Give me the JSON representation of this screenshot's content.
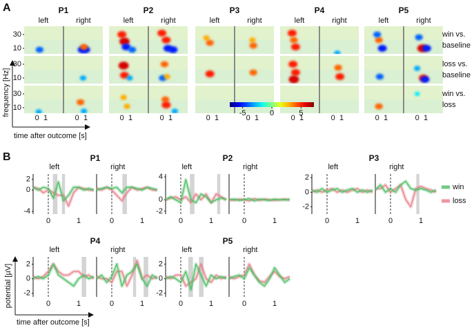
{
  "chart_data": [
    {
      "type": "heatmap",
      "panel_label": "A",
      "xlabel": "time after outcome [s]",
      "ylabel": "frequency [Hz]",
      "xlim": [
        -1.5,
        3
      ],
      "ylim": [
        2,
        42
      ],
      "xticks": [
        0,
        1
      ],
      "yticks": [
        10,
        30
      ],
      "hemispheres": [
        "left",
        "right"
      ],
      "conditions": [
        [
          "win vs.",
          "baseline"
        ],
        [
          "loss vs.",
          "baseline"
        ],
        [
          "win vs.",
          "loss"
        ]
      ],
      "colorbar": {
        "lim": [
          -7.2,
          7.2
        ],
        "ticks": [
          -5,
          0,
          5
        ]
      },
      "participants": [
        {
          "name": "P1",
          "blobs": [
            [
              [
                [
                  0.3,
                  8,
                  -4
                ]
              ],
              [
                [
                  0.6,
                  8,
                  -5
                ],
                [
                  1.0,
                  8,
                  -5
                ],
                [
                  0.8,
                  12,
                  4
                ]
              ]
            ],
            [
              [],
              [
                [
                  0.7,
                  10,
                  -3
                ]
              ]
            ],
            [
              [
                [
                  0.2,
                  4,
                  -3
                ]
              ],
              [
                [
                  0.4,
                  18,
                  4
                ],
                [
                  0.8,
                  5,
                  -3
                ]
              ]
            ]
          ]
        },
        {
          "name": "P2",
          "blobs": [
            [
              [
                [
                  0.0,
                  30,
                  5
                ],
                [
                  0.3,
                  20,
                  6
                ],
                [
                  0.5,
                  12,
                  -5
                ],
                [
                  1.2,
                  8,
                  -4
                ]
              ],
              [
                [
                  0.0,
                  32,
                  5
                ],
                [
                  0.5,
                  22,
                  5
                ],
                [
                  0.7,
                  10,
                  -5
                ],
                [
                  1.3,
                  8,
                  -5
                ]
              ]
            ],
            [
              [
                [
                  0.2,
                  28,
                  6
                ],
                [
                  0.3,
                  14,
                  5
                ],
                [
                  0.9,
                  10,
                  -3
                ]
              ],
              [
                [
                  0.3,
                  30,
                  4
                ],
                [
                  0.1,
                  10,
                  -4
                ],
                [
                  0.6,
                  12,
                  3
                ]
              ]
            ],
            [
              [
                [
                  0.2,
                  25,
                  3
                ],
                [
                  0.6,
                  12,
                  3
                ]
              ],
              [
                [
                  0.4,
                  22,
                  4
                ],
                [
                  0.5,
                  14,
                  5
                ],
                [
                  1.5,
                  5,
                  -3
                ]
              ]
            ]
          ]
        },
        {
          "name": "P3",
          "blobs": [
            [
              [
                [
                  -0.2,
                  25,
                  3
                ],
                [
                  0.2,
                  18,
                  4
                ]
              ],
              [
                [
                  0.5,
                  22,
                  3
                ],
                [
                  0.6,
                  14,
                  4
                ]
              ]
            ],
            [
              [
                [
                  0.2,
                  16,
                  5
                ]
              ],
              [
                [
                  0.6,
                  18,
                  4
                ]
              ]
            ],
            [
              [],
              []
            ]
          ]
        },
        {
          "name": "P4",
          "blobs": [
            [
              [
                [
                  -0.1,
                  32,
                  5
                ],
                [
                  0.1,
                  22,
                  4
                ],
                [
                  0.3,
                  12,
                  5
                ]
              ],
              [
                [
                  0.5,
                  3,
                  -3
                ]
              ]
            ],
            [
              [
                [
                  0.0,
                  30,
                  5
                ],
                [
                  0.3,
                  18,
                  5
                ],
                [
                  0.1,
                  8,
                  6
                ]
              ],
              [
                [
                  0.6,
                  25,
                  4
                ],
                [
                  0.8,
                  12,
                  5
                ]
              ]
            ],
            [
              [],
              []
            ]
          ]
        },
        {
          "name": "P5",
          "blobs": [
            [
              [
                [
                  0.2,
                  22,
                  4
                ],
                [
                  0.0,
                  30,
                  -4
                ],
                [
                  0.6,
                  10,
                  -5
                ]
              ],
              [
                [
                  0.2,
                  26,
                  -4
                ],
                [
                  0.6,
                  10,
                  6
                ],
                [
                  1.1,
                  10,
                  -5
                ]
              ]
            ],
            [
              [
                [
                  0.3,
                  12,
                  -4
                ]
              ],
              [
                [
                  0.0,
                  24,
                  -3
                ],
                [
                  0.7,
                  10,
                  5
                ],
                [
                  0.9,
                  8,
                  -5
                ]
              ]
            ],
            [
              [
                [
                  0.2,
                  12,
                  4
                ]
              ],
              [
                [
                  0.0,
                  30,
                  -2
                ]
              ]
            ]
          ]
        }
      ]
    },
    {
      "type": "line",
      "panel_label": "B",
      "xlabel": "time after outcome [s]",
      "ylabel": "potential [µV]",
      "xlim": [
        -0.5,
        1.5
      ],
      "xticks": [
        0,
        1
      ],
      "hemispheres": [
        "left",
        "right"
      ],
      "series": [
        {
          "name": "win",
          "color": "#4fbf66"
        },
        {
          "name": "loss",
          "color": "#e8808a"
        }
      ],
      "x": [
        -0.5,
        -0.333,
        -0.167,
        0,
        0.167,
        0.333,
        0.5,
        0.667,
        0.833,
        1,
        1.167,
        1.333,
        1.5
      ],
      "participants": [
        {
          "name": "P1",
          "ylim": [
            -4.5,
            3
          ],
          "yticks": [
            -4,
            0,
            2
          ],
          "panels": [
            {
              "values": [
                [
                  0.5,
                  0,
                  0.5,
                  0.3,
                  -1.5,
                  1.5,
                  -2,
                  -1,
                  0.5,
                  0.5,
                  0,
                  0.3,
                  0
                ],
                [
                  0.5,
                  0.3,
                  -0.5,
                  0,
                  -0.5,
                  -1,
                  -1,
                  -3,
                  -0.5,
                  0.5,
                  0.3,
                  0,
                  0
                ]
              ],
              "sig": [
                [
                  0.15,
                  0.3
                ],
                [
                  0.45,
                  0.55
                ]
              ]
            },
            {
              "values": [
                [
                  0,
                  0.3,
                  0.5,
                  0.3,
                  0.5,
                  -0.5,
                  0.5,
                  0.5,
                  0.3,
                  0,
                  0.5,
                  0.3,
                  0
                ],
                [
                  0.3,
                  0,
                  0.5,
                  0,
                  -1,
                  -2,
                  -0.5,
                  0.5,
                  0,
                  0.3,
                  0.5,
                  0,
                  0
                ]
              ],
              "sig": [
                [
                  0.35,
                  0.5
                ]
              ]
            }
          ]
        },
        {
          "name": "P2",
          "ylim": [
            -2.5,
            4.5
          ],
          "yticks": [
            -2,
            0,
            4
          ],
          "panels": [
            {
              "values": [
                [
                  0,
                  0.5,
                  0,
                  -0.5,
                  3.5,
                  0,
                  -0.5,
                  1,
                  0.5,
                  -0.5,
                  0,
                  0.3,
                  0
                ],
                [
                  0,
                  0.3,
                  0.5,
                  0,
                  0.5,
                  -0.5,
                  1,
                  0,
                  1,
                  -0.5,
                  1,
                  0.5,
                  0
                ]
              ],
              "sig": [
                [
                  0.3,
                  0.45
                ],
                [
                  1.2,
                  1.3
                ]
              ]
            },
            {
              "values": [
                [
                  0,
                  0.1,
                  -0.1,
                  0,
                  0.2,
                  -0.2,
                  0.1,
                  0,
                  -0.1,
                  0.1,
                  0,
                  0,
                  0
                ],
                [
                  0,
                  -0.1,
                  0.1,
                  0,
                  -0.2,
                  0.2,
                  -0.1,
                  0.1,
                  0,
                  -0.1,
                  0,
                  0.1,
                  0
                ]
              ],
              "sig": []
            }
          ]
        },
        {
          "name": "P3",
          "ylim": [
            -3,
            2.5
          ],
          "yticks": [
            -2,
            0,
            2
          ],
          "panels": [
            {
              "values": [
                [
                  0.3,
                  0,
                  0.5,
                  0,
                  0.3,
                  0.5,
                  0,
                  0.3,
                  0.5,
                  0,
                  0.3,
                  0,
                  0.3
                ],
                [
                  0,
                  0.3,
                  0,
                  0.3,
                  0.5,
                  0,
                  0.3,
                  0,
                  0.3,
                  0.5,
                  0,
                  0.3,
                  0
                ]
              ],
              "sig": []
            },
            {
              "values": [
                [
                  0.3,
                  1,
                  0,
                  0.5,
                  0,
                  1,
                  1.5,
                  0.5,
                  0.3,
                  0.5,
                  0.3,
                  0,
                  0.3
                ],
                [
                  0.5,
                  0.5,
                  1,
                  0,
                  0.5,
                  1,
                  -1,
                  -2,
                  0.5,
                  0.8,
                  0.5,
                  0.3,
                  0
                ]
              ],
              "sig": [
                [
                  0.85,
                  0.95
                ]
              ]
            }
          ]
        },
        {
          "name": "P4",
          "ylim": [
            -2.5,
            3
          ],
          "yticks": [
            -2,
            0,
            2
          ],
          "panels": [
            {
              "values": [
                [
                  0,
                  0.3,
                  0,
                  0.5,
                  2,
                  0.5,
                  0,
                  -0.5,
                  -1,
                  0,
                  0.5,
                  0,
                  0.3
                ],
                [
                  0.3,
                  0,
                  0.3,
                  1,
                  2,
                  1,
                  0.5,
                  0.5,
                  1,
                  1,
                  0.3,
                  0.5,
                  0
                ]
              ],
              "sig": [
                [
                  1.1,
                  1.25
                ]
              ]
            },
            {
              "values": [
                [
                  0,
                  0.5,
                  -0.5,
                  0.3,
                  2,
                  -1,
                  0.5,
                  1,
                  2,
                  0,
                  -1,
                  0.5,
                  0
                ],
                [
                  0.3,
                  0,
                  0,
                  -0.5,
                  1,
                  1,
                  -1,
                  0.5,
                  2.5,
                  0,
                  0.5,
                  0,
                  0.3
                ]
              ],
              "sig": [
                [
                  0.7,
                  0.8
                ],
                [
                  1.05,
                  1.2
                ]
              ]
            }
          ]
        },
        {
          "name": "P5",
          "ylim": [
            -2.5,
            3
          ],
          "yticks": [
            -2,
            0,
            2
          ],
          "panels": [
            {
              "values": [
                [
                  0,
                  0.3,
                  0,
                  -0.5,
                  1,
                  -1.5,
                  2,
                  0.5,
                  -1,
                  0.5,
                  0,
                  0.3,
                  0
                ],
                [
                  0.3,
                  0,
                  0.5,
                  0.5,
                  -1,
                  -0.5,
                  0,
                  2,
                  0,
                  -0.5,
                  0.5,
                  0,
                  0.3
                ]
              ],
              "sig": [
                [
                  0.25,
                  0.4
                ],
                [
                  0.6,
                  0.75
                ]
              ]
            },
            {
              "values": [
                [
                  0,
                  0.3,
                  0.5,
                  0,
                  1.5,
                  0.5,
                  -0.5,
                  -1,
                  0,
                  1.5,
                  0.5,
                  -0.5,
                  0
                ],
                [
                  0.3,
                  0,
                  0.3,
                  0.5,
                  2,
                  0.5,
                  -0.3,
                  -0.5,
                  0.3,
                  1,
                  0.3,
                  0,
                  0.3
                ]
              ],
              "sig": []
            }
          ]
        }
      ]
    }
  ]
}
